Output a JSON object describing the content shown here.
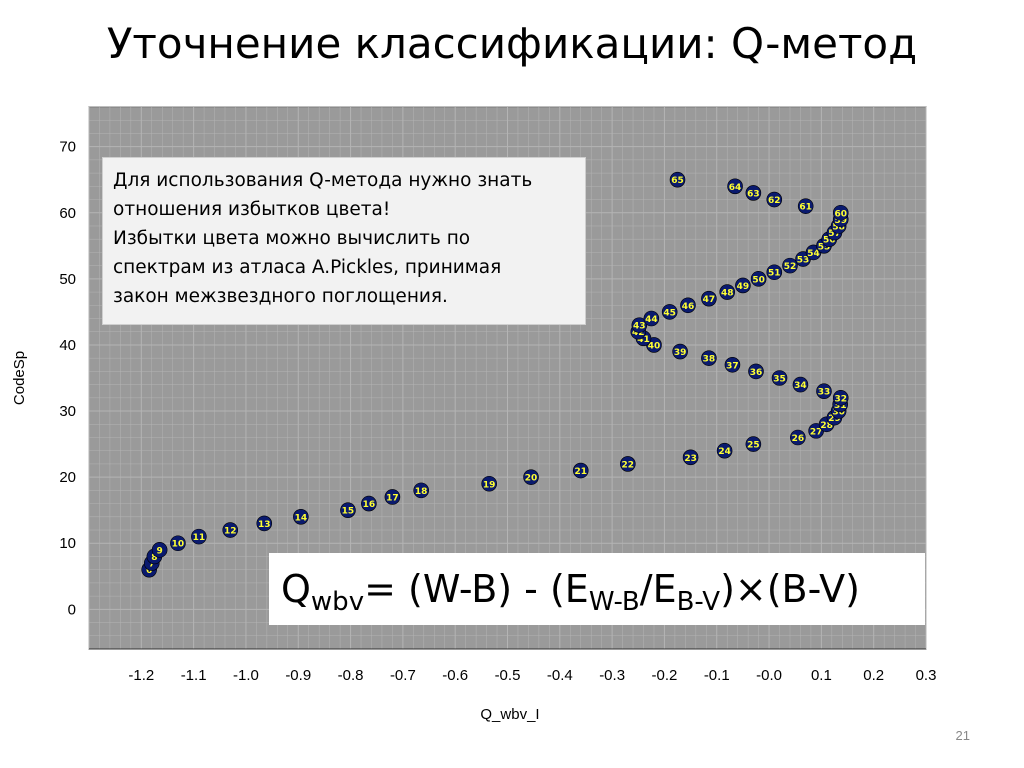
{
  "slide": {
    "title": "Уточнение классификации: Q-метод",
    "page_number": "21"
  },
  "note": {
    "lines": [
      "Для использования Q-метода нужно знать",
      "отношения избытков цвета!",
      "Избытки цвета можно вычислить по",
      "спектрам из атласа A.Pickles, принимая",
      "закон межзвездного поглощения."
    ]
  },
  "formula": {
    "q": "Q",
    "q_sub": "wbv",
    "mid1": "= (W-B) - (E",
    "e1_sub": "W-B",
    "slash": "/E",
    "e2_sub": "B-V",
    "times": ")×",
    "tail": "(B-V)"
  },
  "chart_data": {
    "type": "scatter",
    "xlabel": "Q_wbv_I",
    "ylabel": "CodeSp",
    "xlim": [
      -1.3,
      0.3
    ],
    "ylim": [
      -6,
      76
    ],
    "x_ticks": [
      "-1.2",
      "-1.1",
      "-1.0",
      "-0.9",
      "-0.8",
      "-0.7",
      "-0.6",
      "-0.5",
      "-0.4",
      "-0.3",
      "-0.2",
      "-0.1",
      "-0.0",
      "0.1",
      "0.2",
      "0.3"
    ],
    "x_tick_values": [
      -1.2,
      -1.1,
      -1.0,
      -0.9,
      -0.8,
      -0.7,
      -0.6,
      -0.5,
      -0.4,
      -0.3,
      -0.2,
      -0.1,
      0.0,
      0.1,
      0.2,
      0.3
    ],
    "y_ticks": [
      "0",
      "10",
      "20",
      "30",
      "40",
      "50",
      "60",
      "70"
    ],
    "y_tick_values": [
      0,
      10,
      20,
      30,
      40,
      50,
      60,
      70
    ],
    "grid": true,
    "colors": {
      "plot_bg": "#9a9a9a",
      "grid": "#b4b4b4",
      "marker": "#0a1a6e",
      "label": "#ffff33"
    },
    "points": [
      {
        "x": -1.185,
        "y": 6,
        "label": "6"
      },
      {
        "x": -1.18,
        "y": 7,
        "label": "7"
      },
      {
        "x": -1.175,
        "y": 8,
        "label": "8"
      },
      {
        "x": -1.165,
        "y": 9,
        "label": "9"
      },
      {
        "x": -1.13,
        "y": 10,
        "label": "10"
      },
      {
        "x": -1.09,
        "y": 11,
        "label": "11"
      },
      {
        "x": -1.03,
        "y": 12,
        "label": "12"
      },
      {
        "x": -0.965,
        "y": 13,
        "label": "13"
      },
      {
        "x": -0.895,
        "y": 14,
        "label": "14"
      },
      {
        "x": -0.805,
        "y": 15,
        "label": "15"
      },
      {
        "x": -0.765,
        "y": 16,
        "label": "16"
      },
      {
        "x": -0.72,
        "y": 17,
        "label": "17"
      },
      {
        "x": -0.665,
        "y": 18,
        "label": "18"
      },
      {
        "x": -0.535,
        "y": 19,
        "label": "19"
      },
      {
        "x": -0.455,
        "y": 20,
        "label": "20"
      },
      {
        "x": -0.36,
        "y": 21,
        "label": "21"
      },
      {
        "x": -0.27,
        "y": 22,
        "label": "22"
      },
      {
        "x": -0.15,
        "y": 23,
        "label": "23"
      },
      {
        "x": -0.085,
        "y": 24,
        "label": "24"
      },
      {
        "x": -0.03,
        "y": 25,
        "label": "25"
      },
      {
        "x": 0.055,
        "y": 26,
        "label": "26"
      },
      {
        "x": 0.09,
        "y": 27,
        "label": "27"
      },
      {
        "x": 0.11,
        "y": 28,
        "label": "28"
      },
      {
        "x": 0.125,
        "y": 29,
        "label": "29"
      },
      {
        "x": 0.133,
        "y": 30,
        "label": "30"
      },
      {
        "x": 0.136,
        "y": 31,
        "label": "31"
      },
      {
        "x": 0.137,
        "y": 32,
        "label": "32"
      },
      {
        "x": 0.105,
        "y": 33,
        "label": "33"
      },
      {
        "x": 0.06,
        "y": 34,
        "label": "34"
      },
      {
        "x": 0.02,
        "y": 35,
        "label": "35"
      },
      {
        "x": -0.025,
        "y": 36,
        "label": "36"
      },
      {
        "x": -0.07,
        "y": 37,
        "label": "37"
      },
      {
        "x": -0.115,
        "y": 38,
        "label": "38"
      },
      {
        "x": -0.17,
        "y": 39,
        "label": "39"
      },
      {
        "x": -0.22,
        "y": 40,
        "label": "40"
      },
      {
        "x": -0.24,
        "y": 41,
        "label": "41"
      },
      {
        "x": -0.25,
        "y": 42,
        "label": "42"
      },
      {
        "x": -0.248,
        "y": 43,
        "label": "43"
      },
      {
        "x": -0.225,
        "y": 44,
        "label": "44"
      },
      {
        "x": -0.19,
        "y": 45,
        "label": "45"
      },
      {
        "x": -0.155,
        "y": 46,
        "label": "46"
      },
      {
        "x": -0.115,
        "y": 47,
        "label": "47"
      },
      {
        "x": -0.08,
        "y": 48,
        "label": "48"
      },
      {
        "x": -0.05,
        "y": 49,
        "label": "49"
      },
      {
        "x": -0.02,
        "y": 50,
        "label": "50"
      },
      {
        "x": 0.01,
        "y": 51,
        "label": "51"
      },
      {
        "x": 0.04,
        "y": 52,
        "label": "52"
      },
      {
        "x": 0.065,
        "y": 53,
        "label": "53"
      },
      {
        "x": 0.085,
        "y": 54,
        "label": "54"
      },
      {
        "x": 0.105,
        "y": 55,
        "label": "55"
      },
      {
        "x": 0.115,
        "y": 56,
        "label": "56"
      },
      {
        "x": 0.125,
        "y": 57,
        "label": "57"
      },
      {
        "x": 0.133,
        "y": 58,
        "label": "58"
      },
      {
        "x": 0.137,
        "y": 59,
        "label": "59"
      },
      {
        "x": 0.137,
        "y": 60,
        "label": "60"
      },
      {
        "x": 0.07,
        "y": 61,
        "label": "61"
      },
      {
        "x": 0.01,
        "y": 62,
        "label": "62"
      },
      {
        "x": -0.03,
        "y": 63,
        "label": "63"
      },
      {
        "x": -0.065,
        "y": 64,
        "label": "64"
      },
      {
        "x": -0.175,
        "y": 65,
        "label": "65"
      }
    ]
  }
}
